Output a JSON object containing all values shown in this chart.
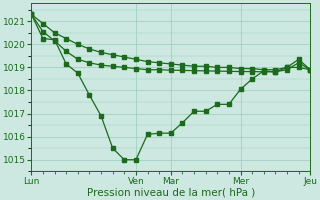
{
  "bg_color": "#cce8e0",
  "grid_color": "#99ccbb",
  "line_color": "#1a6b1a",
  "marker_color": "#1a6b1a",
  "xlabel": "Pression niveau de la mer( hPa )",
  "xtick_labels": [
    "Lun",
    "",
    "",
    "",
    "",
    "",
    "",
    "",
    "",
    "Ven",
    "",
    "",
    "Mar",
    "",
    "",
    "",
    "",
    "",
    "Mer",
    "",
    "",
    "",
    "",
    "",
    "Jeu"
  ],
  "xtick_major_labels": [
    "Lun",
    "Ven",
    "Mar",
    "Mer",
    "Jeu"
  ],
  "xtick_major_pos": [
    0,
    9,
    12,
    18,
    24
  ],
  "ylim": [
    1014.5,
    1021.8
  ],
  "yticks": [
    1015,
    1016,
    1017,
    1018,
    1019,
    1020,
    1021
  ],
  "xlim": [
    0,
    24
  ],
  "series1_x": [
    0,
    1,
    2,
    3,
    4,
    5,
    6,
    7,
    8,
    9,
    10,
    11,
    12,
    13,
    14,
    15,
    16,
    17,
    18,
    19,
    20,
    21,
    22,
    23,
    24
  ],
  "series1_y": [
    1021.3,
    1020.25,
    1020.2,
    1019.15,
    1018.75,
    1017.8,
    1016.9,
    1015.5,
    1015.0,
    1015.0,
    1016.1,
    1016.15,
    1016.15,
    1016.6,
    1017.1,
    1017.1,
    1017.4,
    1017.4,
    1018.05,
    1018.5,
    1018.85,
    1018.8,
    1019.0,
    1019.35,
    1018.9
  ],
  "series2_x": [
    0,
    1,
    2,
    3,
    4,
    5,
    6,
    7,
    8,
    9,
    10,
    11,
    12,
    13,
    14,
    15,
    16,
    17,
    18,
    19,
    20,
    21,
    22,
    23,
    24
  ],
  "series2_y": [
    1021.3,
    1020.9,
    1020.5,
    1020.25,
    1020.0,
    1019.8,
    1019.65,
    1019.55,
    1019.45,
    1019.35,
    1019.25,
    1019.2,
    1019.15,
    1019.1,
    1019.05,
    1019.05,
    1019.0,
    1019.0,
    1018.95,
    1018.95,
    1018.9,
    1018.9,
    1019.0,
    1019.0,
    1018.9
  ],
  "series3_x": [
    0,
    1,
    2,
    3,
    4,
    5,
    6,
    7,
    8,
    9,
    10,
    11,
    12,
    13,
    14,
    15,
    16,
    17,
    18,
    19,
    20,
    21,
    22,
    23,
    24
  ],
  "series3_y": [
    1021.3,
    1020.55,
    1020.15,
    1019.7,
    1019.35,
    1019.2,
    1019.1,
    1019.05,
    1019.0,
    1018.95,
    1018.9,
    1018.9,
    1018.88,
    1018.87,
    1018.86,
    1018.85,
    1018.84,
    1018.83,
    1018.82,
    1018.82,
    1018.81,
    1018.81,
    1018.9,
    1019.2,
    1018.9
  ]
}
